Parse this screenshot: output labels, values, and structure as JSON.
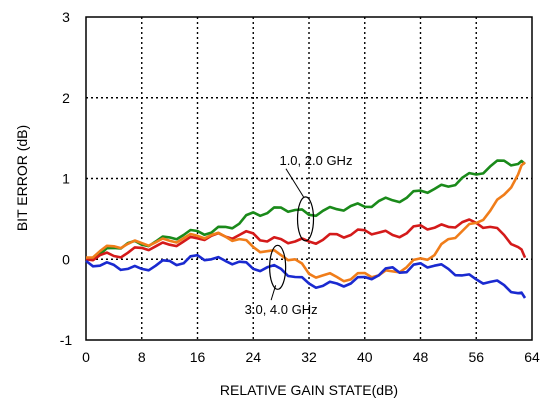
{
  "chart_data": {
    "type": "line",
    "xlabel": "RELATIVE GAIN STATE(dB)",
    "ylabel": "BIT ERROR (dB)",
    "xlim": [
      0,
      64
    ],
    "ylim": [
      -1,
      3
    ],
    "xticks": [
      0,
      8,
      16,
      24,
      32,
      40,
      48,
      56,
      64
    ],
    "yticks": [
      -1,
      0,
      1,
      2,
      3
    ],
    "xtick_labels": [
      "0",
      "8",
      "16",
      "24",
      "32",
      "40",
      "48",
      "56",
      "64"
    ],
    "ytick_labels": [
      "-1",
      "0",
      "1",
      "2",
      "3"
    ],
    "grid": true,
    "grid_style": "dotted",
    "annotations": [
      {
        "text": "1.0, 2.0 GHz",
        "x": 33,
        "y": 1.17,
        "target": [
          31.5,
          0.5
        ]
      },
      {
        "text": "3.0, 4.0 GHz",
        "x": 28,
        "y": -0.68,
        "target": [
          27.5,
          -0.1
        ]
      }
    ],
    "series": [
      {
        "color": "#1a8a1a",
        "x": [
          0,
          2,
          4,
          6,
          8,
          10,
          12,
          14,
          16,
          18,
          20,
          22,
          24,
          26,
          28,
          30,
          32,
          34,
          36,
          38,
          40,
          42,
          44,
          46,
          48,
          50,
          52,
          54,
          56,
          58,
          60,
          62,
          63
        ],
        "y": [
          0.0,
          0.06,
          0.14,
          0.2,
          0.18,
          0.22,
          0.27,
          0.3,
          0.35,
          0.33,
          0.4,
          0.44,
          0.58,
          0.57,
          0.64,
          0.61,
          0.55,
          0.6,
          0.62,
          0.66,
          0.65,
          0.72,
          0.73,
          0.76,
          0.85,
          0.87,
          0.9,
          1.01,
          1.05,
          1.15,
          1.22,
          1.18,
          1.18
        ]
      },
      {
        "color": "#d41a1a",
        "x": [
          0,
          2,
          4,
          6,
          8,
          10,
          12,
          14,
          16,
          18,
          20,
          22,
          24,
          26,
          28,
          30,
          32,
          34,
          36,
          38,
          40,
          42,
          44,
          46,
          48,
          50,
          52,
          54,
          56,
          58,
          60,
          62,
          63
        ],
        "y": [
          0.0,
          0.05,
          0.04,
          0.08,
          0.14,
          0.16,
          0.18,
          0.22,
          0.26,
          0.29,
          0.28,
          0.3,
          0.32,
          0.22,
          0.25,
          0.22,
          0.22,
          0.24,
          0.31,
          0.3,
          0.36,
          0.33,
          0.3,
          0.32,
          0.42,
          0.39,
          0.4,
          0.46,
          0.45,
          0.4,
          0.3,
          0.15,
          0.02
        ]
      },
      {
        "color": "#f07d1a",
        "x": [
          0,
          2,
          4,
          6,
          8,
          10,
          12,
          14,
          16,
          18,
          20,
          22,
          24,
          26,
          28,
          30,
          32,
          34,
          36,
          38,
          40,
          42,
          44,
          46,
          48,
          50,
          52,
          54,
          56,
          58,
          60,
          62,
          63
        ],
        "y": [
          0.02,
          0.1,
          0.16,
          0.19,
          0.2,
          0.21,
          0.23,
          0.26,
          0.29,
          0.3,
          0.28,
          0.25,
          0.15,
          0.1,
          0.05,
          0.0,
          -0.18,
          -0.2,
          -0.22,
          -0.25,
          -0.17,
          -0.2,
          -0.15,
          -0.1,
          0.01,
          0.05,
          0.25,
          0.35,
          0.45,
          0.6,
          0.8,
          1.05,
          1.2
        ]
      },
      {
        "color": "#1a2ad0",
        "x": [
          0,
          2,
          4,
          6,
          8,
          10,
          12,
          14,
          16,
          18,
          20,
          22,
          24,
          26,
          28,
          30,
          32,
          34,
          36,
          38,
          40,
          42,
          44,
          46,
          48,
          50,
          52,
          54,
          56,
          58,
          60,
          62,
          63
        ],
        "y": [
          -0.02,
          -0.08,
          -0.07,
          -0.12,
          -0.12,
          -0.08,
          -0.02,
          -0.05,
          0.05,
          0.0,
          -0.02,
          -0.03,
          -0.12,
          -0.1,
          -0.12,
          -0.22,
          -0.3,
          -0.33,
          -0.3,
          -0.3,
          -0.22,
          -0.2,
          -0.1,
          -0.16,
          -0.05,
          -0.08,
          -0.12,
          -0.2,
          -0.25,
          -0.28,
          -0.32,
          -0.42,
          -0.48
        ]
      }
    ]
  }
}
